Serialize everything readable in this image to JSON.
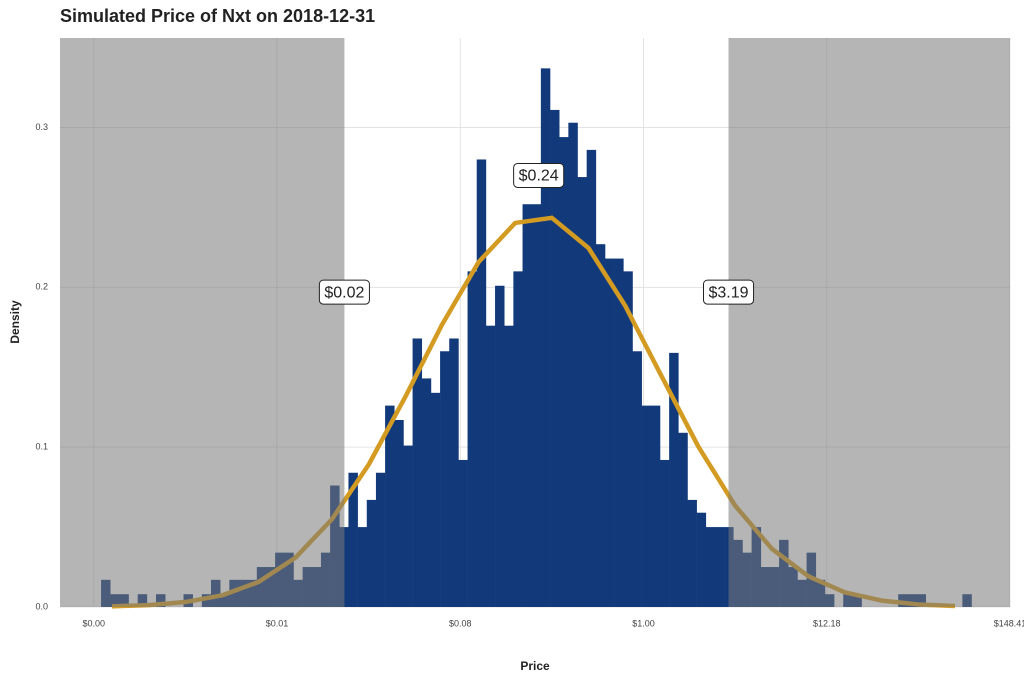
{
  "chart_data": {
    "type": "histogram",
    "title": "Simulated Price of Nxt on 2018-12-31",
    "xlabel": "Price",
    "ylabel": "Density",
    "x_scale": "log (natural log of price)",
    "color": "#123a7a",
    "bins": [
      -7.4,
      -7.275,
      -7.15,
      -7.025,
      -6.9,
      -6.775,
      -6.65,
      -6.525,
      -6.4,
      -6.275,
      -6.15,
      -6.025,
      -5.9,
      -5.775,
      -5.65,
      -5.525,
      -5.4,
      -5.275,
      -5.15,
      -5.025,
      -4.9,
      -4.775,
      -4.65,
      -4.525,
      -4.4,
      -4.275,
      -4.15,
      -4.025,
      -3.9,
      -3.775,
      -3.65,
      -3.525,
      -3.4,
      -3.275,
      -3.15,
      -3.025,
      -2.9,
      -2.775,
      -2.65,
      -2.525,
      -2.4,
      -2.275,
      -2.15,
      -2.025,
      -1.9,
      -1.775,
      -1.65,
      -1.525,
      -1.4,
      -1.275,
      -1.15,
      -1.025,
      -0.9,
      -0.775,
      -0.65,
      -0.525,
      -0.4,
      -0.275,
      -0.15,
      -0.025,
      0.1,
      0.225,
      0.35,
      0.475,
      0.6,
      0.725,
      0.85,
      0.975,
      1.1,
      1.225,
      1.35,
      1.475,
      1.6,
      1.725,
      1.85,
      1.975,
      2.1,
      2.225,
      2.35,
      2.475,
      2.6,
      2.725,
      2.85,
      2.975,
      3.1,
      3.225,
      3.35,
      3.475,
      3.6,
      3.725,
      3.85,
      3.975,
      4.1,
      4.225,
      4.35,
      4.475
    ],
    "values": [
      0.017,
      0.008,
      0.008,
      0,
      0.008,
      0,
      0.008,
      0,
      0,
      0.008,
      0,
      0.008,
      0.017,
      0.008,
      0.017,
      0.017,
      0.017,
      0.025,
      0.025,
      0.034,
      0.034,
      0.017,
      0.025,
      0.025,
      0.034,
      0.076,
      0.05,
      0.084,
      0.05,
      0.067,
      0.084,
      0.126,
      0.117,
      0.101,
      0.168,
      0.143,
      0.134,
      0.16,
      0.168,
      0.092,
      0.21,
      0.28,
      0.176,
      0.201,
      0.176,
      0.21,
      0.252,
      0.252,
      0.337,
      0.311,
      0.294,
      0.303,
      0.269,
      0.286,
      0.227,
      0.218,
      0.218,
      0.21,
      0.16,
      0.126,
      0.126,
      0.092,
      0.159,
      0.109,
      0.067,
      0.059,
      0.05,
      0.05,
      0.05,
      0.042,
      0.034,
      0.05,
      0.025,
      0.025,
      0.042,
      0.025,
      0.017,
      0.034,
      0.017,
      0.008,
      0,
      0.008,
      0.008,
      0,
      0,
      0,
      0,
      0.008,
      0.008,
      0.008,
      0,
      0,
      0,
      0,
      0.008
    ],
    "density_curve": {
      "color": "#d39b22",
      "x": [
        -7.25,
        -6.75,
        -6.25,
        -5.75,
        -5.25,
        -4.75,
        -4.25,
        -3.75,
        -3.25,
        -2.75,
        -2.25,
        -1.75,
        -1.25,
        -0.75,
        -0.25,
        0.25,
        0.75,
        1.25,
        1.75,
        2.25,
        2.75,
        3.25,
        3.75,
        4.25
      ],
      "values": [
        0.0004,
        0.0012,
        0.0031,
        0.0073,
        0.0157,
        0.0308,
        0.0549,
        0.089,
        0.1314,
        0.1765,
        0.2158,
        0.2403,
        0.2435,
        0.2246,
        0.1885,
        0.1441,
        0.1002,
        0.0634,
        0.0365,
        0.0192,
        0.0091,
        0.004,
        0.0016,
        0.0006
      ]
    },
    "shade_outside": [
      -4.08,
      1.16
    ],
    "annotations": [
      {
        "text": "$0.02",
        "x": -4.08,
        "y": 0.197
      },
      {
        "text": "$0.24",
        "x": -1.43,
        "y": 0.27
      },
      {
        "text": "$3.19",
        "x": 1.16,
        "y": 0.197
      }
    ],
    "xlim": [
      -7.96,
      5.0
    ],
    "xticks": [
      {
        "value": -7.5,
        "label": "$0.00"
      },
      {
        "value": -5,
        "label": "$0.01"
      },
      {
        "value": -2.5,
        "label": "$0.08"
      },
      {
        "value": 0,
        "label": "$1.00"
      },
      {
        "value": 2.5,
        "label": "$12.18"
      },
      {
        "value": 5,
        "label": "$148.41"
      }
    ],
    "ylim": [
      0,
      0.356
    ],
    "yticks": [
      {
        "value": 0,
        "label": "0.0"
      },
      0.1,
      0.2,
      0.3
    ],
    "grid": true
  }
}
